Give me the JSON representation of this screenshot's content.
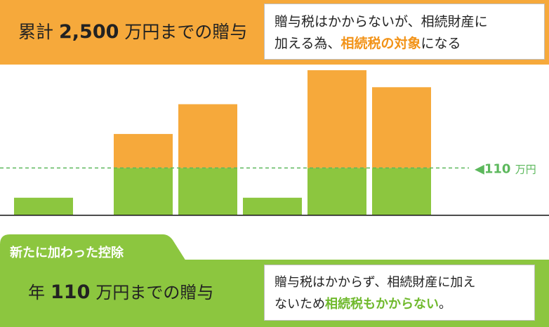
{
  "colors": {
    "orange": "#f6a93b",
    "green": "#8cc63f",
    "threshold_line": "#5cb85c",
    "highlight_orange": "#f29318",
    "highlight_green": "#6fb92c"
  },
  "header": {
    "prefix": "累計",
    "amount": "2,500",
    "suffix": "万円までの贈与",
    "note_line1": "贈与税はかからないが、相続財産に",
    "note_line2_prefix": "加える為、",
    "note_line2_highlight": "相続税の対象",
    "note_line2_suffix": "になる"
  },
  "chart_data": {
    "type": "bar",
    "categories": [
      "",
      "",
      "",
      "",
      "",
      ""
    ],
    "threshold": 110,
    "threshold_label_value": "◀110",
    "threshold_label_unit": "万円",
    "series": [
      {
        "values": [
          40,
          110,
          110,
          40,
          110,
          110
        ]
      },
      {
        "values": [
          0,
          80,
          150,
          0,
          230,
          190
        ]
      }
    ],
    "ylim": [
      0,
      350
    ],
    "stacked": true,
    "legend": "none",
    "grid": false
  },
  "footer": {
    "tab_label": "新たに加わった控除",
    "prefix": "年",
    "amount": "110",
    "suffix": "万円までの贈与",
    "note_line1": "贈与税はかからず、相続財産に加え",
    "note_line2_prefix": "ないため",
    "note_line2_highlight": "相続税もかからない",
    "note_line2_suffix": "。"
  }
}
